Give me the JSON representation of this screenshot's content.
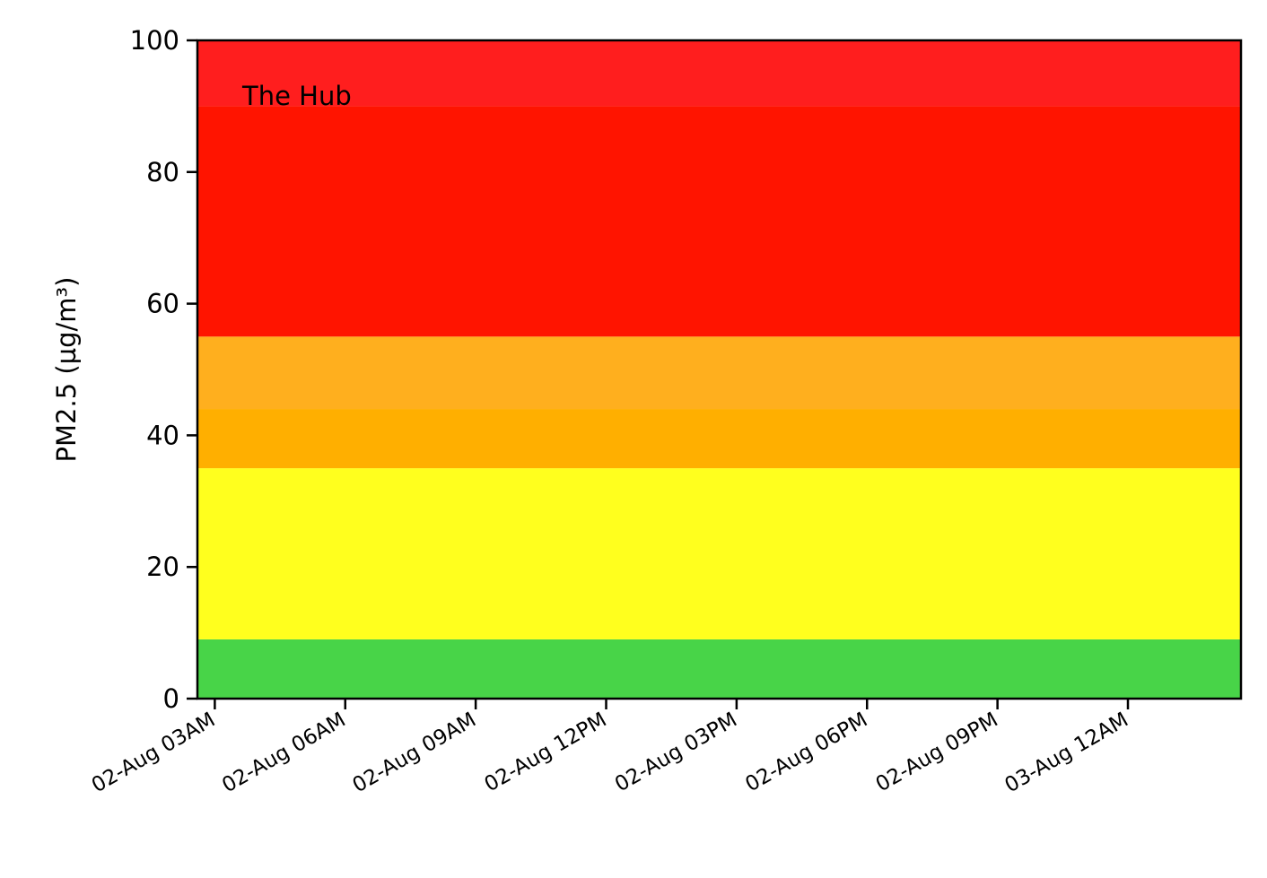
{
  "chart_data": {
    "type": "area",
    "title": "The Hub",
    "ylabel": "PM2.5 (µg/m³)",
    "xlabel": "",
    "ylim": [
      0,
      100
    ],
    "yticks": [
      0,
      20,
      40,
      60,
      80,
      100
    ],
    "xlim": [
      "2024-08-02T02:36",
      "2024-08-03T02:36"
    ],
    "xticks": [
      {
        "value": "2024-08-02T03:00",
        "label": "02-Aug 03AM"
      },
      {
        "value": "2024-08-02T06:00",
        "label": "02-Aug 06AM"
      },
      {
        "value": "2024-08-02T09:00",
        "label": "02-Aug 09AM"
      },
      {
        "value": "2024-08-02T12:00",
        "label": "02-Aug 12PM"
      },
      {
        "value": "2024-08-02T15:00",
        "label": "02-Aug 03PM"
      },
      {
        "value": "2024-08-02T18:00",
        "label": "02-Aug 06PM"
      },
      {
        "value": "2024-08-02T21:00",
        "label": "02-Aug 09PM"
      },
      {
        "value": "2024-08-03T00:00",
        "label": "03-Aug 12AM"
      }
    ],
    "bands": [
      {
        "from": 0,
        "to": 9,
        "color": "#48d448"
      },
      {
        "from": 9,
        "to": 35,
        "color": "#ffff1e"
      },
      {
        "from": 35,
        "to": 44,
        "color": "#ffaf00"
      },
      {
        "from": 44,
        "to": 55,
        "color": "#ffaf1e"
      },
      {
        "from": 55,
        "to": 90,
        "color": "#ff1400"
      },
      {
        "from": 90,
        "to": 100,
        "color": "#ff1e1e"
      }
    ],
    "grid": false,
    "series": []
  }
}
